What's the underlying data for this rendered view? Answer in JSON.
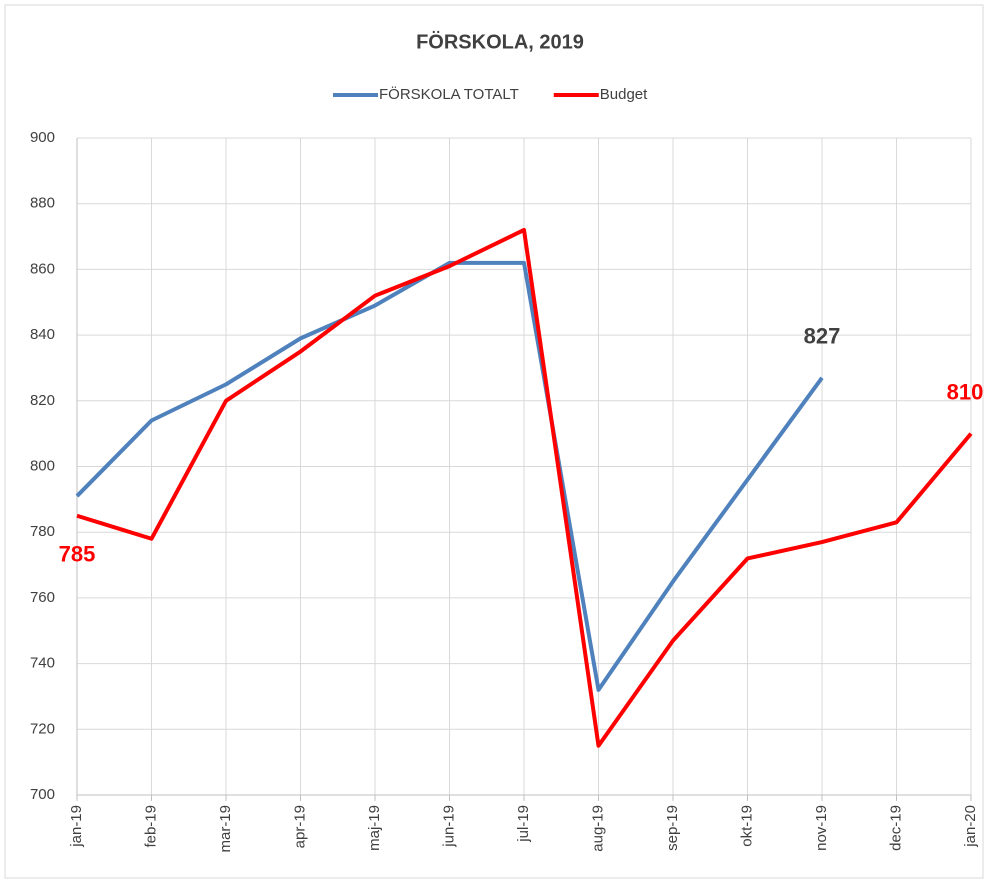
{
  "chart_data": {
    "type": "line",
    "title": "FÖRSKOLA, 2019",
    "categories": [
      "jan-19",
      "feb-19",
      "mar-19",
      "apr-19",
      "maj-19",
      "jun-19",
      "jul-19",
      "aug-19",
      "sep-19",
      "okt-19",
      "nov-19",
      "dec-19",
      "jan-20"
    ],
    "series": [
      {
        "name": "FÖRSKOLA TOTALT",
        "color": "#4f81bd",
        "values": [
          791,
          814,
          825,
          839,
          849,
          862,
          862,
          732,
          765,
          796,
          827,
          null,
          null
        ],
        "value_labels": [
          null,
          null,
          null,
          null,
          null,
          null,
          null,
          null,
          null,
          null,
          "827",
          null,
          null
        ],
        "label_color": "#404040"
      },
      {
        "name": "Budget",
        "color": "#ff0000",
        "values": [
          785,
          778,
          820,
          835,
          852,
          861,
          872,
          715,
          747,
          772,
          777,
          783,
          810
        ],
        "value_labels": [
          "785",
          null,
          null,
          null,
          null,
          null,
          null,
          null,
          null,
          null,
          null,
          null,
          "810"
        ],
        "label_color": "#ff0000"
      }
    ],
    "ylim": [
      700,
      900
    ],
    "yticks": [
      700,
      720,
      740,
      760,
      780,
      800,
      820,
      840,
      860,
      880,
      900
    ],
    "grid": true,
    "legend": "top"
  }
}
